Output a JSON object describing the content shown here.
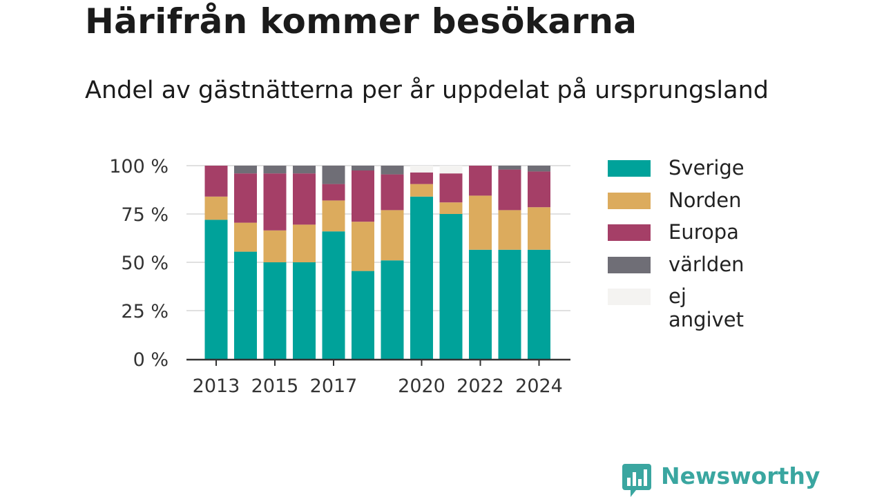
{
  "title": "Härifrån kommer besökarna",
  "subtitle": "Andel av gästnätterna per år uppdelat på ursprungsland",
  "logo": {
    "text": "Newsworthy",
    "icon": "bar-chart-speech-bubble-icon"
  },
  "colors": {
    "Sverige": "#00a29a",
    "Norden": "#dcab5d",
    "Europa": "#a53f67",
    "världen": "#6f6e76",
    "ej angivet": "#f4f3f1",
    "logo": "#3aa6a0"
  },
  "chart_data": {
    "type": "bar",
    "stacked": true,
    "categories": [
      "2013",
      "2014",
      "2015",
      "2016",
      "2017",
      "2018",
      "2019",
      "2020",
      "2021",
      "2022",
      "2023",
      "2024"
    ],
    "x_tick_labels": [
      "2013",
      "2015",
      "2017",
      "2020",
      "2022",
      "2024"
    ],
    "y_tick_labels": [
      "0 %",
      "25 %",
      "50 %",
      "75 %",
      "100 %"
    ],
    "ylim": [
      0,
      100
    ],
    "grid": true,
    "legend_position": "right",
    "series": [
      {
        "name": "Sverige",
        "values": [
          72,
          55.5,
          50,
          50,
          66,
          45.5,
          51,
          84,
          75,
          56.5,
          56.5,
          56.5
        ]
      },
      {
        "name": "Norden",
        "values": [
          12,
          15,
          16.5,
          19.5,
          16,
          25.5,
          26,
          6.5,
          6,
          28,
          20.5,
          22
        ]
      },
      {
        "name": "Europa",
        "values": [
          16,
          25.5,
          29.5,
          26.5,
          8.5,
          26.5,
          18.5,
          6,
          15,
          15.5,
          21,
          18.5
        ]
      },
      {
        "name": "världen",
        "values": [
          0,
          4,
          4,
          4,
          9.5,
          2.5,
          4.5,
          0,
          0,
          0,
          2,
          3
        ]
      },
      {
        "name": "ej angivet",
        "values": [
          0,
          0,
          0,
          0,
          0,
          0,
          0,
          3.5,
          4,
          0,
          0,
          0
        ]
      }
    ]
  }
}
